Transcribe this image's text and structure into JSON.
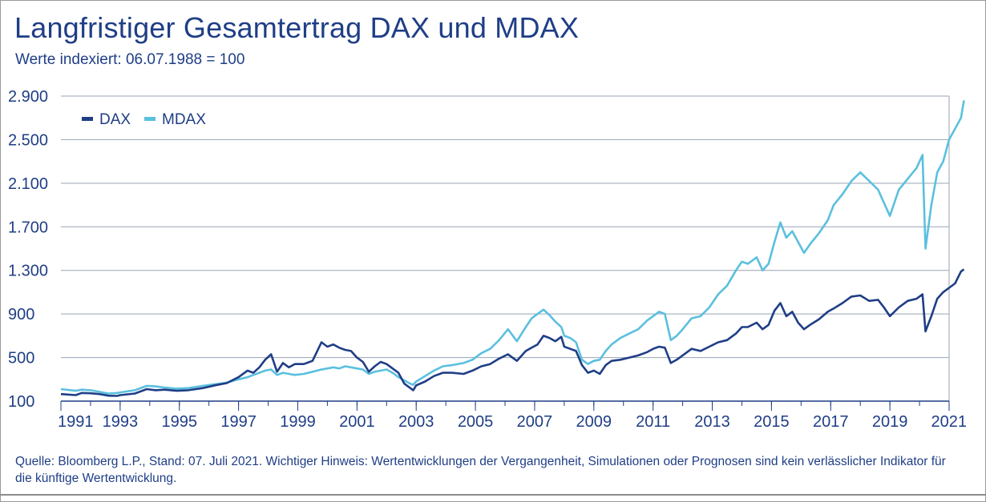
{
  "title": "Langfristiger Gesamtertrag DAX und MDAX",
  "subtitle": "Werte indexiert: 06.07.1988 = 100",
  "footnote": "Quelle: Bloomberg L.P., Stand: 07. Juli 2021. Wichtiger Hinweis: Wertentwicklungen der Vergangenheit, Simulationen oder Prognosen sind kein verlässlicher Indikator für die künftige Wertentwicklung.",
  "colors": {
    "text": "#1f3e86",
    "dax": "#1f3e86",
    "mdax": "#5bc0de",
    "grid": "#9aa3b5"
  },
  "chart_data": {
    "type": "line",
    "title": "Langfristiger Gesamtertrag DAX und MDAX",
    "xlabel": "",
    "ylabel": "",
    "xlim": [
      1991,
      2021
    ],
    "ylim": [
      100,
      2900
    ],
    "yticks": [
      100,
      500,
      900,
      1300,
      1700,
      2100,
      2500,
      2900
    ],
    "ytick_labels": [
      "100",
      "500",
      "900",
      "1.300",
      "1.700",
      "2.100",
      "2.500",
      "2.900"
    ],
    "xticks": [
      1991,
      1993,
      1995,
      1997,
      1999,
      2001,
      2003,
      2005,
      2007,
      2009,
      2011,
      2013,
      2015,
      2017,
      2019,
      2021
    ],
    "xtick_labels": [
      "1991",
      "1993",
      "1995",
      "1997",
      "1999",
      "2001",
      "2003",
      "2005",
      "2007",
      "2009",
      "2011",
      "2013",
      "2015",
      "2017",
      "2019",
      "2021"
    ],
    "grid": true,
    "legend_position": "top-left",
    "series": [
      {
        "name": "DAX",
        "color": "#1f3e86",
        "points": [
          [
            1991.0,
            165
          ],
          [
            1991.5,
            155
          ],
          [
            1991.7,
            175
          ],
          [
            1992.0,
            172
          ],
          [
            1992.3,
            165
          ],
          [
            1992.6,
            150
          ],
          [
            1992.9,
            148
          ],
          [
            1993.0,
            155
          ],
          [
            1993.5,
            170
          ],
          [
            1993.9,
            210
          ],
          [
            1994.2,
            200
          ],
          [
            1994.5,
            205
          ],
          [
            1994.9,
            195
          ],
          [
            1995.3,
            200
          ],
          [
            1995.8,
            220
          ],
          [
            1996.2,
            245
          ],
          [
            1996.6,
            265
          ],
          [
            1997.0,
            320
          ],
          [
            1997.3,
            380
          ],
          [
            1997.5,
            360
          ],
          [
            1997.7,
            410
          ],
          [
            1997.9,
            480
          ],
          [
            1998.1,
            530
          ],
          [
            1998.3,
            370
          ],
          [
            1998.5,
            450
          ],
          [
            1998.7,
            410
          ],
          [
            1998.9,
            440
          ],
          [
            1999.2,
            440
          ],
          [
            1999.5,
            470
          ],
          [
            1999.8,
            640
          ],
          [
            2000.0,
            600
          ],
          [
            2000.2,
            620
          ],
          [
            2000.4,
            590
          ],
          [
            2000.6,
            570
          ],
          [
            2000.8,
            560
          ],
          [
            2001.0,
            500
          ],
          [
            2001.2,
            460
          ],
          [
            2001.4,
            370
          ],
          [
            2001.6,
            420
          ],
          [
            2001.8,
            460
          ],
          [
            2002.0,
            440
          ],
          [
            2002.2,
            400
          ],
          [
            2002.4,
            360
          ],
          [
            2002.6,
            260
          ],
          [
            2002.8,
            220
          ],
          [
            2002.9,
            200
          ],
          [
            2003.0,
            245
          ],
          [
            2003.3,
            280
          ],
          [
            2003.6,
            330
          ],
          [
            2003.9,
            360
          ],
          [
            2004.2,
            360
          ],
          [
            2004.6,
            350
          ],
          [
            2004.9,
            380
          ],
          [
            2005.2,
            420
          ],
          [
            2005.5,
            440
          ],
          [
            2005.8,
            490
          ],
          [
            2006.1,
            530
          ],
          [
            2006.4,
            470
          ],
          [
            2006.7,
            560
          ],
          [
            2006.9,
            590
          ],
          [
            2007.1,
            620
          ],
          [
            2007.3,
            700
          ],
          [
            2007.5,
            680
          ],
          [
            2007.7,
            650
          ],
          [
            2007.9,
            690
          ],
          [
            2008.0,
            600
          ],
          [
            2008.2,
            580
          ],
          [
            2008.4,
            560
          ],
          [
            2008.6,
            430
          ],
          [
            2008.8,
            360
          ],
          [
            2009.0,
            380
          ],
          [
            2009.2,
            350
          ],
          [
            2009.4,
            430
          ],
          [
            2009.6,
            470
          ],
          [
            2009.9,
            480
          ],
          [
            2010.2,
            500
          ],
          [
            2010.5,
            520
          ],
          [
            2010.8,
            550
          ],
          [
            2011.0,
            580
          ],
          [
            2011.2,
            600
          ],
          [
            2011.4,
            590
          ],
          [
            2011.6,
            450
          ],
          [
            2011.8,
            480
          ],
          [
            2012.0,
            520
          ],
          [
            2012.3,
            580
          ],
          [
            2012.6,
            560
          ],
          [
            2012.9,
            600
          ],
          [
            2013.2,
            640
          ],
          [
            2013.5,
            660
          ],
          [
            2013.8,
            720
          ],
          [
            2014.0,
            780
          ],
          [
            2014.2,
            780
          ],
          [
            2014.5,
            820
          ],
          [
            2014.7,
            760
          ],
          [
            2014.9,
            800
          ],
          [
            2015.1,
            930
          ],
          [
            2015.3,
            1000
          ],
          [
            2015.5,
            880
          ],
          [
            2015.7,
            920
          ],
          [
            2015.9,
            820
          ],
          [
            2016.1,
            760
          ],
          [
            2016.3,
            800
          ],
          [
            2016.6,
            850
          ],
          [
            2016.9,
            920
          ],
          [
            2017.1,
            950
          ],
          [
            2017.4,
            1000
          ],
          [
            2017.7,
            1060
          ],
          [
            2018.0,
            1070
          ],
          [
            2018.3,
            1020
          ],
          [
            2018.6,
            1030
          ],
          [
            2018.8,
            960
          ],
          [
            2019.0,
            880
          ],
          [
            2019.3,
            960
          ],
          [
            2019.6,
            1020
          ],
          [
            2019.9,
            1040
          ],
          [
            2020.1,
            1080
          ],
          [
            2020.2,
            740
          ],
          [
            2020.4,
            880
          ],
          [
            2020.6,
            1040
          ],
          [
            2020.8,
            1100
          ],
          [
            2021.0,
            1140
          ],
          [
            2021.2,
            1180
          ],
          [
            2021.4,
            1290
          ],
          [
            2021.5,
            1310
          ]
        ]
      },
      {
        "name": "MDAX",
        "color": "#5bc0de",
        "points": [
          [
            1991.0,
            210
          ],
          [
            1991.5,
            195
          ],
          [
            1991.7,
            205
          ],
          [
            1992.0,
            200
          ],
          [
            1992.3,
            185
          ],
          [
            1992.6,
            170
          ],
          [
            1992.9,
            175
          ],
          [
            1993.0,
            180
          ],
          [
            1993.5,
            200
          ],
          [
            1993.9,
            240
          ],
          [
            1994.2,
            235
          ],
          [
            1994.5,
            225
          ],
          [
            1994.9,
            215
          ],
          [
            1995.3,
            220
          ],
          [
            1995.8,
            240
          ],
          [
            1996.2,
            255
          ],
          [
            1996.6,
            270
          ],
          [
            1997.0,
            300
          ],
          [
            1997.3,
            320
          ],
          [
            1997.5,
            340
          ],
          [
            1997.7,
            360
          ],
          [
            1997.9,
            380
          ],
          [
            1998.1,
            390
          ],
          [
            1998.3,
            340
          ],
          [
            1998.5,
            360
          ],
          [
            1998.7,
            350
          ],
          [
            1998.9,
            340
          ],
          [
            1999.2,
            350
          ],
          [
            1999.5,
            370
          ],
          [
            1999.8,
            390
          ],
          [
            2000.0,
            400
          ],
          [
            2000.2,
            410
          ],
          [
            2000.4,
            400
          ],
          [
            2000.6,
            420
          ],
          [
            2000.8,
            410
          ],
          [
            2001.0,
            400
          ],
          [
            2001.2,
            390
          ],
          [
            2001.4,
            350
          ],
          [
            2001.6,
            370
          ],
          [
            2001.8,
            380
          ],
          [
            2002.0,
            390
          ],
          [
            2002.2,
            360
          ],
          [
            2002.4,
            320
          ],
          [
            2002.6,
            290
          ],
          [
            2002.8,
            260
          ],
          [
            2002.9,
            250
          ],
          [
            2003.0,
            280
          ],
          [
            2003.3,
            330
          ],
          [
            2003.6,
            380
          ],
          [
            2003.9,
            420
          ],
          [
            2004.2,
            430
          ],
          [
            2004.6,
            450
          ],
          [
            2004.9,
            480
          ],
          [
            2005.2,
            540
          ],
          [
            2005.5,
            580
          ],
          [
            2005.8,
            660
          ],
          [
            2006.1,
            760
          ],
          [
            2006.4,
            650
          ],
          [
            2006.7,
            780
          ],
          [
            2006.9,
            860
          ],
          [
            2007.1,
            900
          ],
          [
            2007.3,
            940
          ],
          [
            2007.5,
            890
          ],
          [
            2007.7,
            830
          ],
          [
            2007.9,
            780
          ],
          [
            2008.0,
            700
          ],
          [
            2008.2,
            680
          ],
          [
            2008.4,
            640
          ],
          [
            2008.6,
            480
          ],
          [
            2008.8,
            440
          ],
          [
            2009.0,
            470
          ],
          [
            2009.2,
            480
          ],
          [
            2009.4,
            560
          ],
          [
            2009.6,
            620
          ],
          [
            2009.9,
            680
          ],
          [
            2010.2,
            720
          ],
          [
            2010.5,
            760
          ],
          [
            2010.8,
            840
          ],
          [
            2011.0,
            880
          ],
          [
            2011.2,
            920
          ],
          [
            2011.4,
            900
          ],
          [
            2011.6,
            660
          ],
          [
            2011.8,
            700
          ],
          [
            2012.0,
            760
          ],
          [
            2012.3,
            860
          ],
          [
            2012.6,
            880
          ],
          [
            2012.9,
            960
          ],
          [
            2013.2,
            1080
          ],
          [
            2013.5,
            1160
          ],
          [
            2013.8,
            1300
          ],
          [
            2014.0,
            1380
          ],
          [
            2014.2,
            1360
          ],
          [
            2014.5,
            1420
          ],
          [
            2014.7,
            1300
          ],
          [
            2014.9,
            1360
          ],
          [
            2015.1,
            1560
          ],
          [
            2015.3,
            1740
          ],
          [
            2015.5,
            1600
          ],
          [
            2015.7,
            1660
          ],
          [
            2015.9,
            1560
          ],
          [
            2016.1,
            1460
          ],
          [
            2016.3,
            1540
          ],
          [
            2016.6,
            1640
          ],
          [
            2016.9,
            1760
          ],
          [
            2017.1,
            1900
          ],
          [
            2017.4,
            2000
          ],
          [
            2017.7,
            2120
          ],
          [
            2018.0,
            2200
          ],
          [
            2018.3,
            2120
          ],
          [
            2018.6,
            2040
          ],
          [
            2018.8,
            1920
          ],
          [
            2019.0,
            1800
          ],
          [
            2019.3,
            2040
          ],
          [
            2019.6,
            2140
          ],
          [
            2019.9,
            2240
          ],
          [
            2020.1,
            2360
          ],
          [
            2020.2,
            1500
          ],
          [
            2020.4,
            1900
          ],
          [
            2020.6,
            2200
          ],
          [
            2020.8,
            2300
          ],
          [
            2021.0,
            2500
          ],
          [
            2021.2,
            2600
          ],
          [
            2021.4,
            2700
          ],
          [
            2021.5,
            2860
          ]
        ]
      }
    ]
  }
}
